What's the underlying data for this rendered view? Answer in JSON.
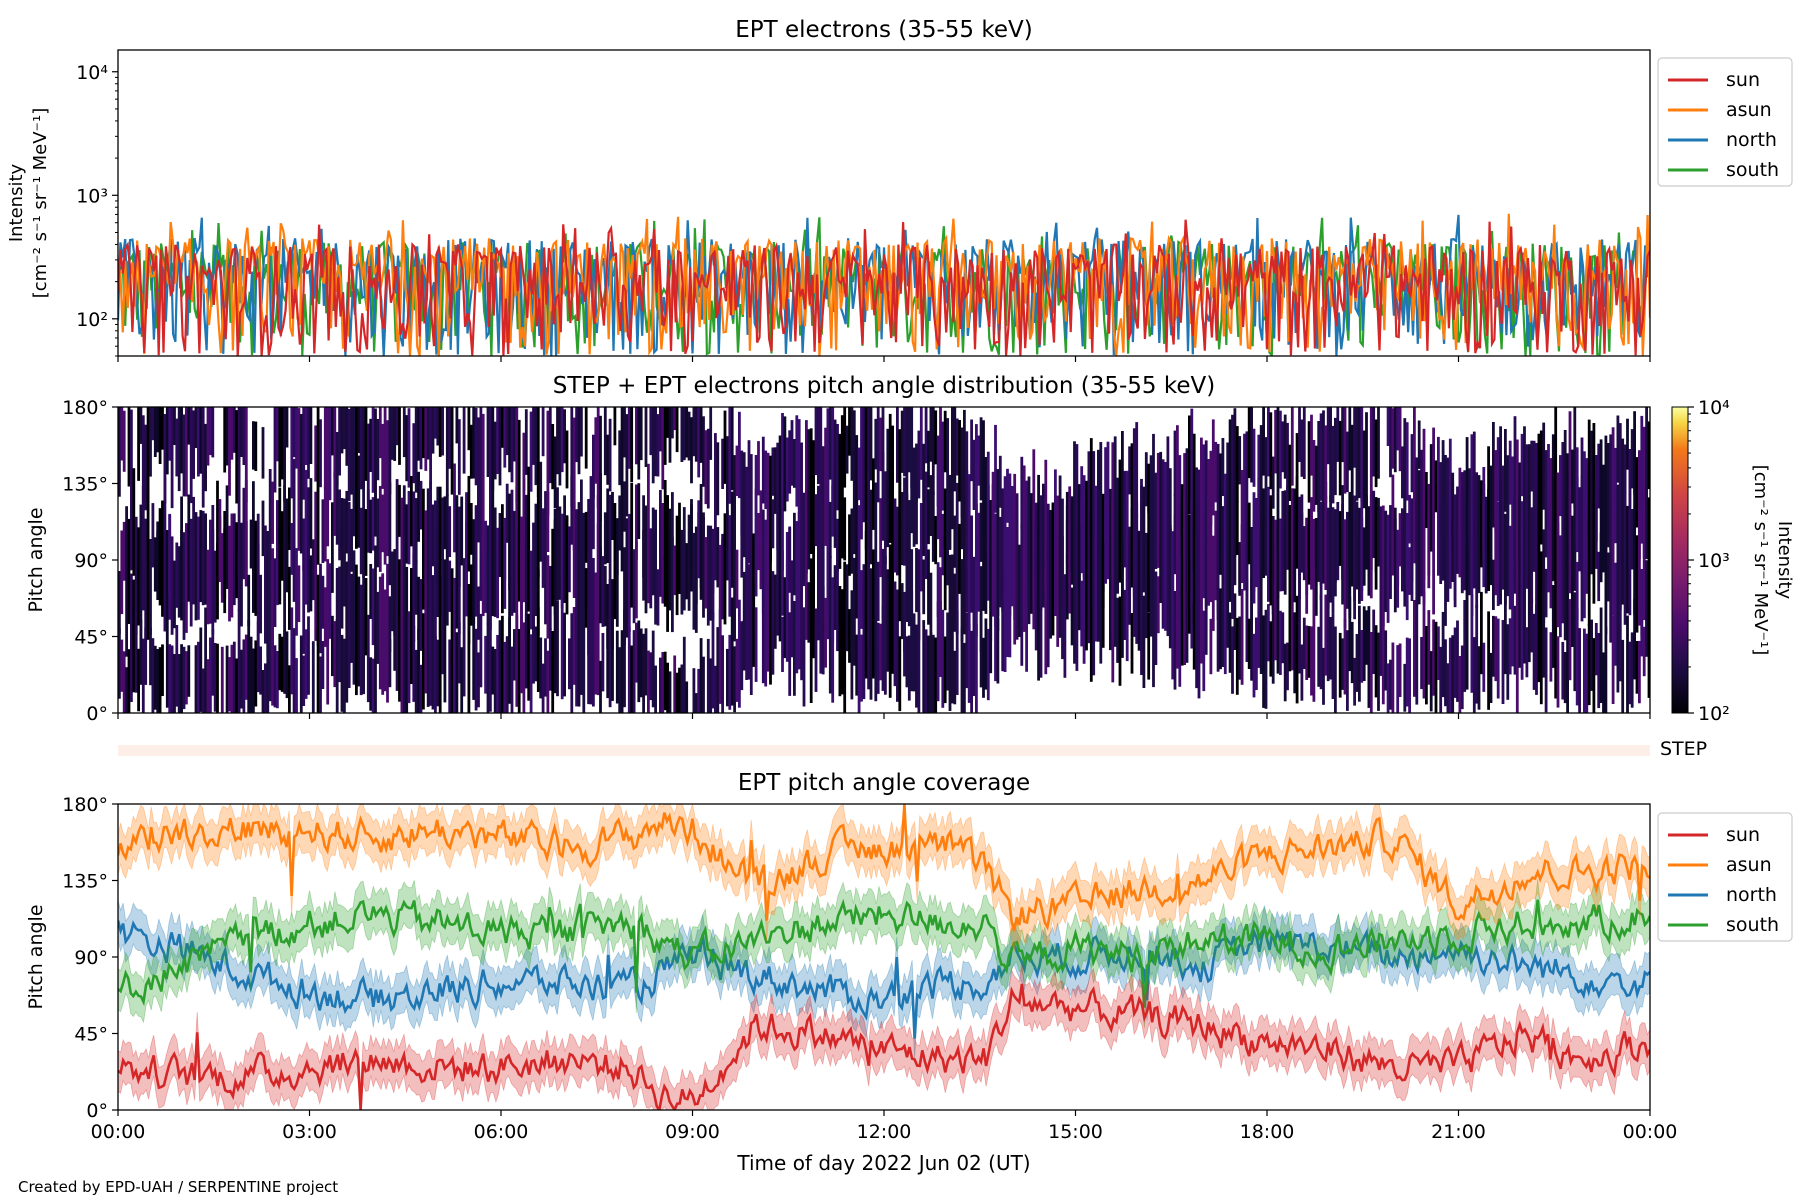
{
  "colors": {
    "sun": "#d62728",
    "asun": "#ff7f0e",
    "north": "#1f77b4",
    "south": "#2ca02c",
    "step_band": "#fdeee8"
  },
  "chart_data": [
    {
      "type": "line",
      "title": "EPT electrons (35-55 keV)",
      "ylabel_lines": [
        "Intensity",
        "[cm⁻² s⁻¹ sr⁻¹ MeV⁻¹]"
      ],
      "yscale": "log",
      "ylim": [
        50,
        15000
      ],
      "yticks": [
        100,
        1000,
        10000
      ],
      "ytick_labels": [
        "10²",
        "10³",
        "10⁴"
      ],
      "x_range_hours": [
        0,
        24
      ],
      "legend": "outside-right-top",
      "series": [
        {
          "name": "sun",
          "typical_range": [
            50,
            400
          ]
        },
        {
          "name": "asun",
          "typical_range": [
            50,
            450
          ]
        },
        {
          "name": "north",
          "typical_range": [
            50,
            450
          ]
        },
        {
          "name": "south",
          "typical_range": [
            50,
            420
          ]
        }
      ],
      "grid": false
    },
    {
      "type": "heatmap",
      "title": "STEP + EPT electrons pitch angle distribution (35-55 keV)",
      "ylabel": "Pitch angle",
      "ylim": [
        0,
        180
      ],
      "yticks": [
        0,
        45,
        90,
        135,
        180
      ],
      "ytick_labels": [
        "0°",
        "45°",
        "90°",
        "135°",
        "180°"
      ],
      "x_range_hours": [
        0,
        24
      ],
      "colorbar": {
        "label_lines": [
          "Intensity",
          "[cm⁻² s⁻¹ sr⁻¹ MeV⁻¹]"
        ],
        "scale": "log",
        "range": [
          100,
          10000
        ],
        "tick_labels": [
          "10²",
          "10³",
          "10⁴"
        ],
        "colormap": "inferno"
      }
    },
    {
      "type": "band",
      "label": "STEP",
      "x_range_hours": [
        0,
        24
      ]
    },
    {
      "type": "line",
      "title": "EPT pitch angle coverage",
      "ylabel": "Pitch angle",
      "ylim": [
        0,
        180
      ],
      "yticks": [
        0,
        45,
        90,
        135,
        180
      ],
      "ytick_labels": [
        "0°",
        "45°",
        "90°",
        "135°",
        "180°"
      ],
      "xlabel": "Time of day 2022 Jun 02 (UT)",
      "x_range_hours": [
        0,
        24
      ],
      "xticks_hours": [
        0,
        3,
        6,
        9,
        12,
        15,
        18,
        21,
        24
      ],
      "xtick_labels": [
        "00:00",
        "03:00",
        "06:00",
        "09:00",
        "12:00",
        "15:00",
        "18:00",
        "21:00",
        "00:00"
      ],
      "legend": "outside-right-top",
      "band_halfwidth_deg": 12,
      "series": [
        {
          "name": "sun",
          "hours": [
            0,
            1,
            2,
            3,
            4,
            5,
            6,
            7,
            8,
            8.5,
            9,
            10,
            11,
            12,
            13,
            13.6,
            14,
            15,
            16,
            17,
            18,
            19,
            20,
            21,
            22,
            23,
            24
          ],
          "pitch_deg": [
            25,
            20,
            20,
            25,
            30,
            25,
            25,
            30,
            25,
            10,
            5,
            50,
            45,
            35,
            30,
            30,
            65,
            60,
            55,
            50,
            40,
            35,
            25,
            25,
            45,
            30,
            40
          ]
        },
        {
          "name": "asun",
          "hours": [
            0,
            1,
            2,
            3,
            4,
            5,
            6,
            7,
            8,
            8.5,
            9,
            10,
            11,
            12,
            13,
            13.6,
            14,
            15,
            16,
            17,
            18,
            19,
            20,
            21,
            22,
            23,
            24
          ],
          "pitch_deg": [
            155,
            165,
            165,
            165,
            160,
            165,
            160,
            155,
            160,
            170,
            165,
            130,
            150,
            155,
            155,
            140,
            115,
            120,
            130,
            135,
            150,
            155,
            160,
            120,
            140,
            140,
            145
          ]
        },
        {
          "name": "north",
          "hours": [
            0,
            1,
            2,
            3,
            4,
            5,
            6,
            7,
            8,
            8.5,
            9,
            10,
            11,
            12,
            13,
            13.6,
            14,
            15,
            16,
            17,
            18,
            19,
            20,
            21,
            22,
            23,
            24
          ],
          "pitch_deg": [
            105,
            95,
            80,
            70,
            65,
            70,
            75,
            75,
            70,
            80,
            90,
            80,
            70,
            65,
            75,
            75,
            90,
            90,
            95,
            85,
            100,
            95,
            90,
            95,
            85,
            80,
            75
          ]
        },
        {
          "name": "south",
          "hours": [
            0,
            1,
            2,
            3,
            4,
            5,
            6,
            7,
            8,
            8.5,
            9,
            10,
            11,
            12,
            13,
            13.6,
            14,
            15,
            16,
            17,
            18,
            19,
            20,
            21,
            22,
            23,
            24
          ],
          "pitch_deg": [
            70,
            85,
            100,
            110,
            115,
            110,
            105,
            105,
            110,
            100,
            90,
            100,
            110,
            115,
            110,
            110,
            85,
            95,
            90,
            100,
            100,
            95,
            100,
            105,
            110,
            110,
            115
          ]
        }
      ]
    }
  ],
  "footer": {
    "credit": "Created by EPD-UAH / SERPENTINE project"
  }
}
